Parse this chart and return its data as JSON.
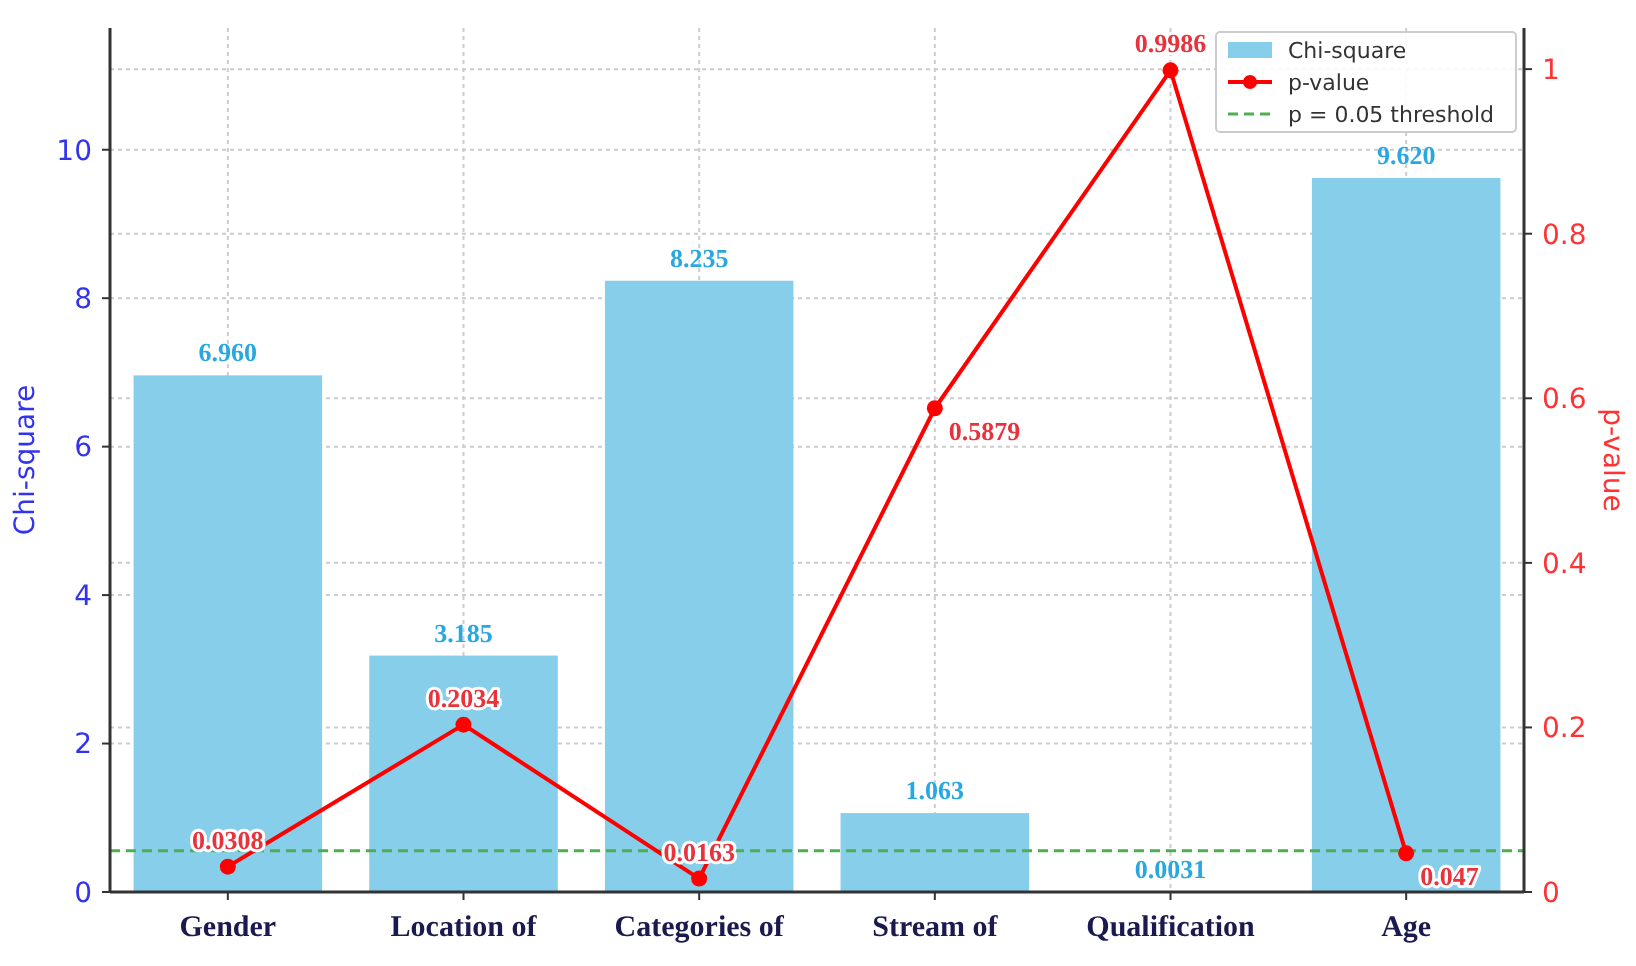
{
  "chart_data": {
    "type": "bar",
    "categories": [
      "Gender",
      "Location of",
      "Categories of",
      "Stream of",
      "Qualification",
      "Age"
    ],
    "ylabel": "Chi-square",
    "y2label": "p-value",
    "ylim": [
      0,
      11.64
    ],
    "yticks": [
      0,
      2,
      4,
      6,
      8,
      10
    ],
    "y2lim": [
      0,
      1.05
    ],
    "y2ticks": [
      0.0,
      0.2,
      0.4,
      0.6,
      0.8,
      1.0
    ],
    "series": [
      {
        "name": "Chi-square",
        "color": "#87ceeb",
        "values": [
          6.96,
          3.185,
          8.235,
          1.063,
          0.0031,
          9.62
        ],
        "value_labels": [
          "6.960",
          "3.185",
          "8.235",
          "1.063",
          "0.0031",
          "9.620"
        ]
      },
      {
        "name": "p-value",
        "type": "line",
        "axis": "y2",
        "color": "#ff0000",
        "marker": "circle",
        "values": [
          0.0308,
          0.2034,
          0.0163,
          0.5879,
          0.9986,
          0.047
        ],
        "value_labels": [
          "0.0308",
          "0.2034",
          "0.0163",
          "0.5879",
          "0.9986",
          "0.047"
        ]
      }
    ],
    "ref_lines": [
      {
        "axis": "y2",
        "value": 0.05,
        "label": "p = 0.05 threshold",
        "color": "#4caf50",
        "line_style": "dashed"
      }
    ],
    "grid": true,
    "legend": "top right"
  }
}
